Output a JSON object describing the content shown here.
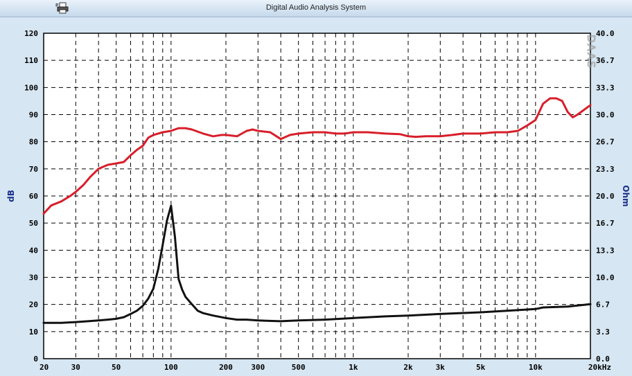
{
  "window": {
    "title": "Digital Audio Analysis System",
    "print_icon": "printer-icon",
    "print_badge": "P"
  },
  "chart_data": {
    "type": "line",
    "watermark": "DAAS",
    "x_scale": "log",
    "x_range": [
      20,
      20000
    ],
    "x_ticks": [
      {
        "value": 20,
        "label": "20"
      },
      {
        "value": 30,
        "label": "30"
      },
      {
        "value": 50,
        "label": "50"
      },
      {
        "value": 100,
        "label": "100"
      },
      {
        "value": 200,
        "label": "200"
      },
      {
        "value": 300,
        "label": "300"
      },
      {
        "value": 500,
        "label": "500"
      },
      {
        "value": 1000,
        "label": "1k"
      },
      {
        "value": 2000,
        "label": "2k"
      },
      {
        "value": 3000,
        "label": "3k"
      },
      {
        "value": 5000,
        "label": "5k"
      },
      {
        "value": 10000,
        "label": "10k"
      },
      {
        "value": 20000,
        "label": "20kHz"
      }
    ],
    "grid_x": [
      20,
      30,
      40,
      50,
      60,
      70,
      80,
      90,
      100,
      200,
      300,
      400,
      500,
      600,
      700,
      800,
      900,
      1000,
      2000,
      3000,
      4000,
      5000,
      6000,
      7000,
      8000,
      9000,
      10000,
      20000
    ],
    "ylabel_left": "dB",
    "ylim_left": [
      0,
      120
    ],
    "yticks_left": [
      "0",
      "10",
      "20",
      "30",
      "40",
      "50",
      "60",
      "70",
      "80",
      "90",
      "100",
      "110",
      "120"
    ],
    "ylabel_right": "Ohm",
    "ylim_right": [
      0,
      40
    ],
    "yticks_right": [
      "0.0",
      "3.3",
      "6.7",
      "10.0",
      "13.3",
      "16.7",
      "20.0",
      "23.3",
      "26.7",
      "30.0",
      "33.3",
      "36.7",
      "40.0"
    ],
    "grid": true,
    "series": [
      {
        "axis": "left",
        "color": "#d81e2a",
        "points": [
          [
            20,
            53.5
          ],
          [
            22,
            56.5
          ],
          [
            25,
            58
          ],
          [
            28,
            60
          ],
          [
            30,
            61.5
          ],
          [
            33,
            64
          ],
          [
            36,
            67
          ],
          [
            40,
            70
          ],
          [
            45,
            71.5
          ],
          [
            50,
            72
          ],
          [
            55,
            72.5
          ],
          [
            60,
            75
          ],
          [
            65,
            77
          ],
          [
            70,
            78.5
          ],
          [
            75,
            81.5
          ],
          [
            80,
            82.5
          ],
          [
            90,
            83.5
          ],
          [
            100,
            84
          ],
          [
            110,
            85
          ],
          [
            120,
            85
          ],
          [
            130,
            84.5
          ],
          [
            150,
            83
          ],
          [
            170,
            82
          ],
          [
            190,
            82.5
          ],
          [
            200,
            82.5
          ],
          [
            230,
            82
          ],
          [
            260,
            84
          ],
          [
            280,
            84.5
          ],
          [
            300,
            84
          ],
          [
            350,
            83.5
          ],
          [
            400,
            81
          ],
          [
            450,
            82.5
          ],
          [
            500,
            83
          ],
          [
            600,
            83.5
          ],
          [
            700,
            83.5
          ],
          [
            800,
            83
          ],
          [
            900,
            83
          ],
          [
            1000,
            83.5
          ],
          [
            1200,
            83.5
          ],
          [
            1500,
            83
          ],
          [
            1800,
            82.8
          ],
          [
            2000,
            82
          ],
          [
            2200,
            81.8
          ],
          [
            2500,
            82
          ],
          [
            3000,
            82
          ],
          [
            3500,
            82.5
          ],
          [
            4000,
            83
          ],
          [
            5000,
            83
          ],
          [
            6000,
            83.5
          ],
          [
            7000,
            83.5
          ],
          [
            8000,
            84
          ],
          [
            9000,
            86
          ],
          [
            10000,
            88
          ],
          [
            11000,
            94
          ],
          [
            12000,
            96
          ],
          [
            13000,
            96
          ],
          [
            14000,
            95
          ],
          [
            15000,
            91
          ],
          [
            16000,
            89
          ],
          [
            17000,
            90
          ],
          [
            20000,
            93.5
          ]
        ]
      },
      {
        "axis": "right",
        "color": "#111111",
        "points": [
          [
            20,
            4.4
          ],
          [
            25,
            4.4
          ],
          [
            30,
            4.5
          ],
          [
            35,
            4.6
          ],
          [
            40,
            4.7
          ],
          [
            45,
            4.8
          ],
          [
            50,
            4.9
          ],
          [
            55,
            5.1
          ],
          [
            60,
            5.5
          ],
          [
            65,
            5.9
          ],
          [
            70,
            6.5
          ],
          [
            75,
            7.4
          ],
          [
            80,
            8.6
          ],
          [
            85,
            11
          ],
          [
            90,
            14
          ],
          [
            95,
            17
          ],
          [
            100,
            18.8
          ],
          [
            105,
            15
          ],
          [
            110,
            9.8
          ],
          [
            115,
            8.5
          ],
          [
            120,
            7.6
          ],
          [
            130,
            6.7
          ],
          [
            140,
            5.9
          ],
          [
            150,
            5.6
          ],
          [
            170,
            5.3
          ],
          [
            200,
            5.0
          ],
          [
            230,
            4.8
          ],
          [
            260,
            4.8
          ],
          [
            300,
            4.7
          ],
          [
            400,
            4.6
          ],
          [
            500,
            4.7
          ],
          [
            700,
            4.8
          ],
          [
            1000,
            5.0
          ],
          [
            1500,
            5.2
          ],
          [
            2000,
            5.3
          ],
          [
            3000,
            5.5
          ],
          [
            5000,
            5.7
          ],
          [
            7000,
            5.9
          ],
          [
            10000,
            6.1
          ],
          [
            11000,
            6.3
          ],
          [
            15000,
            6.4
          ],
          [
            20000,
            6.7
          ]
        ]
      }
    ]
  }
}
